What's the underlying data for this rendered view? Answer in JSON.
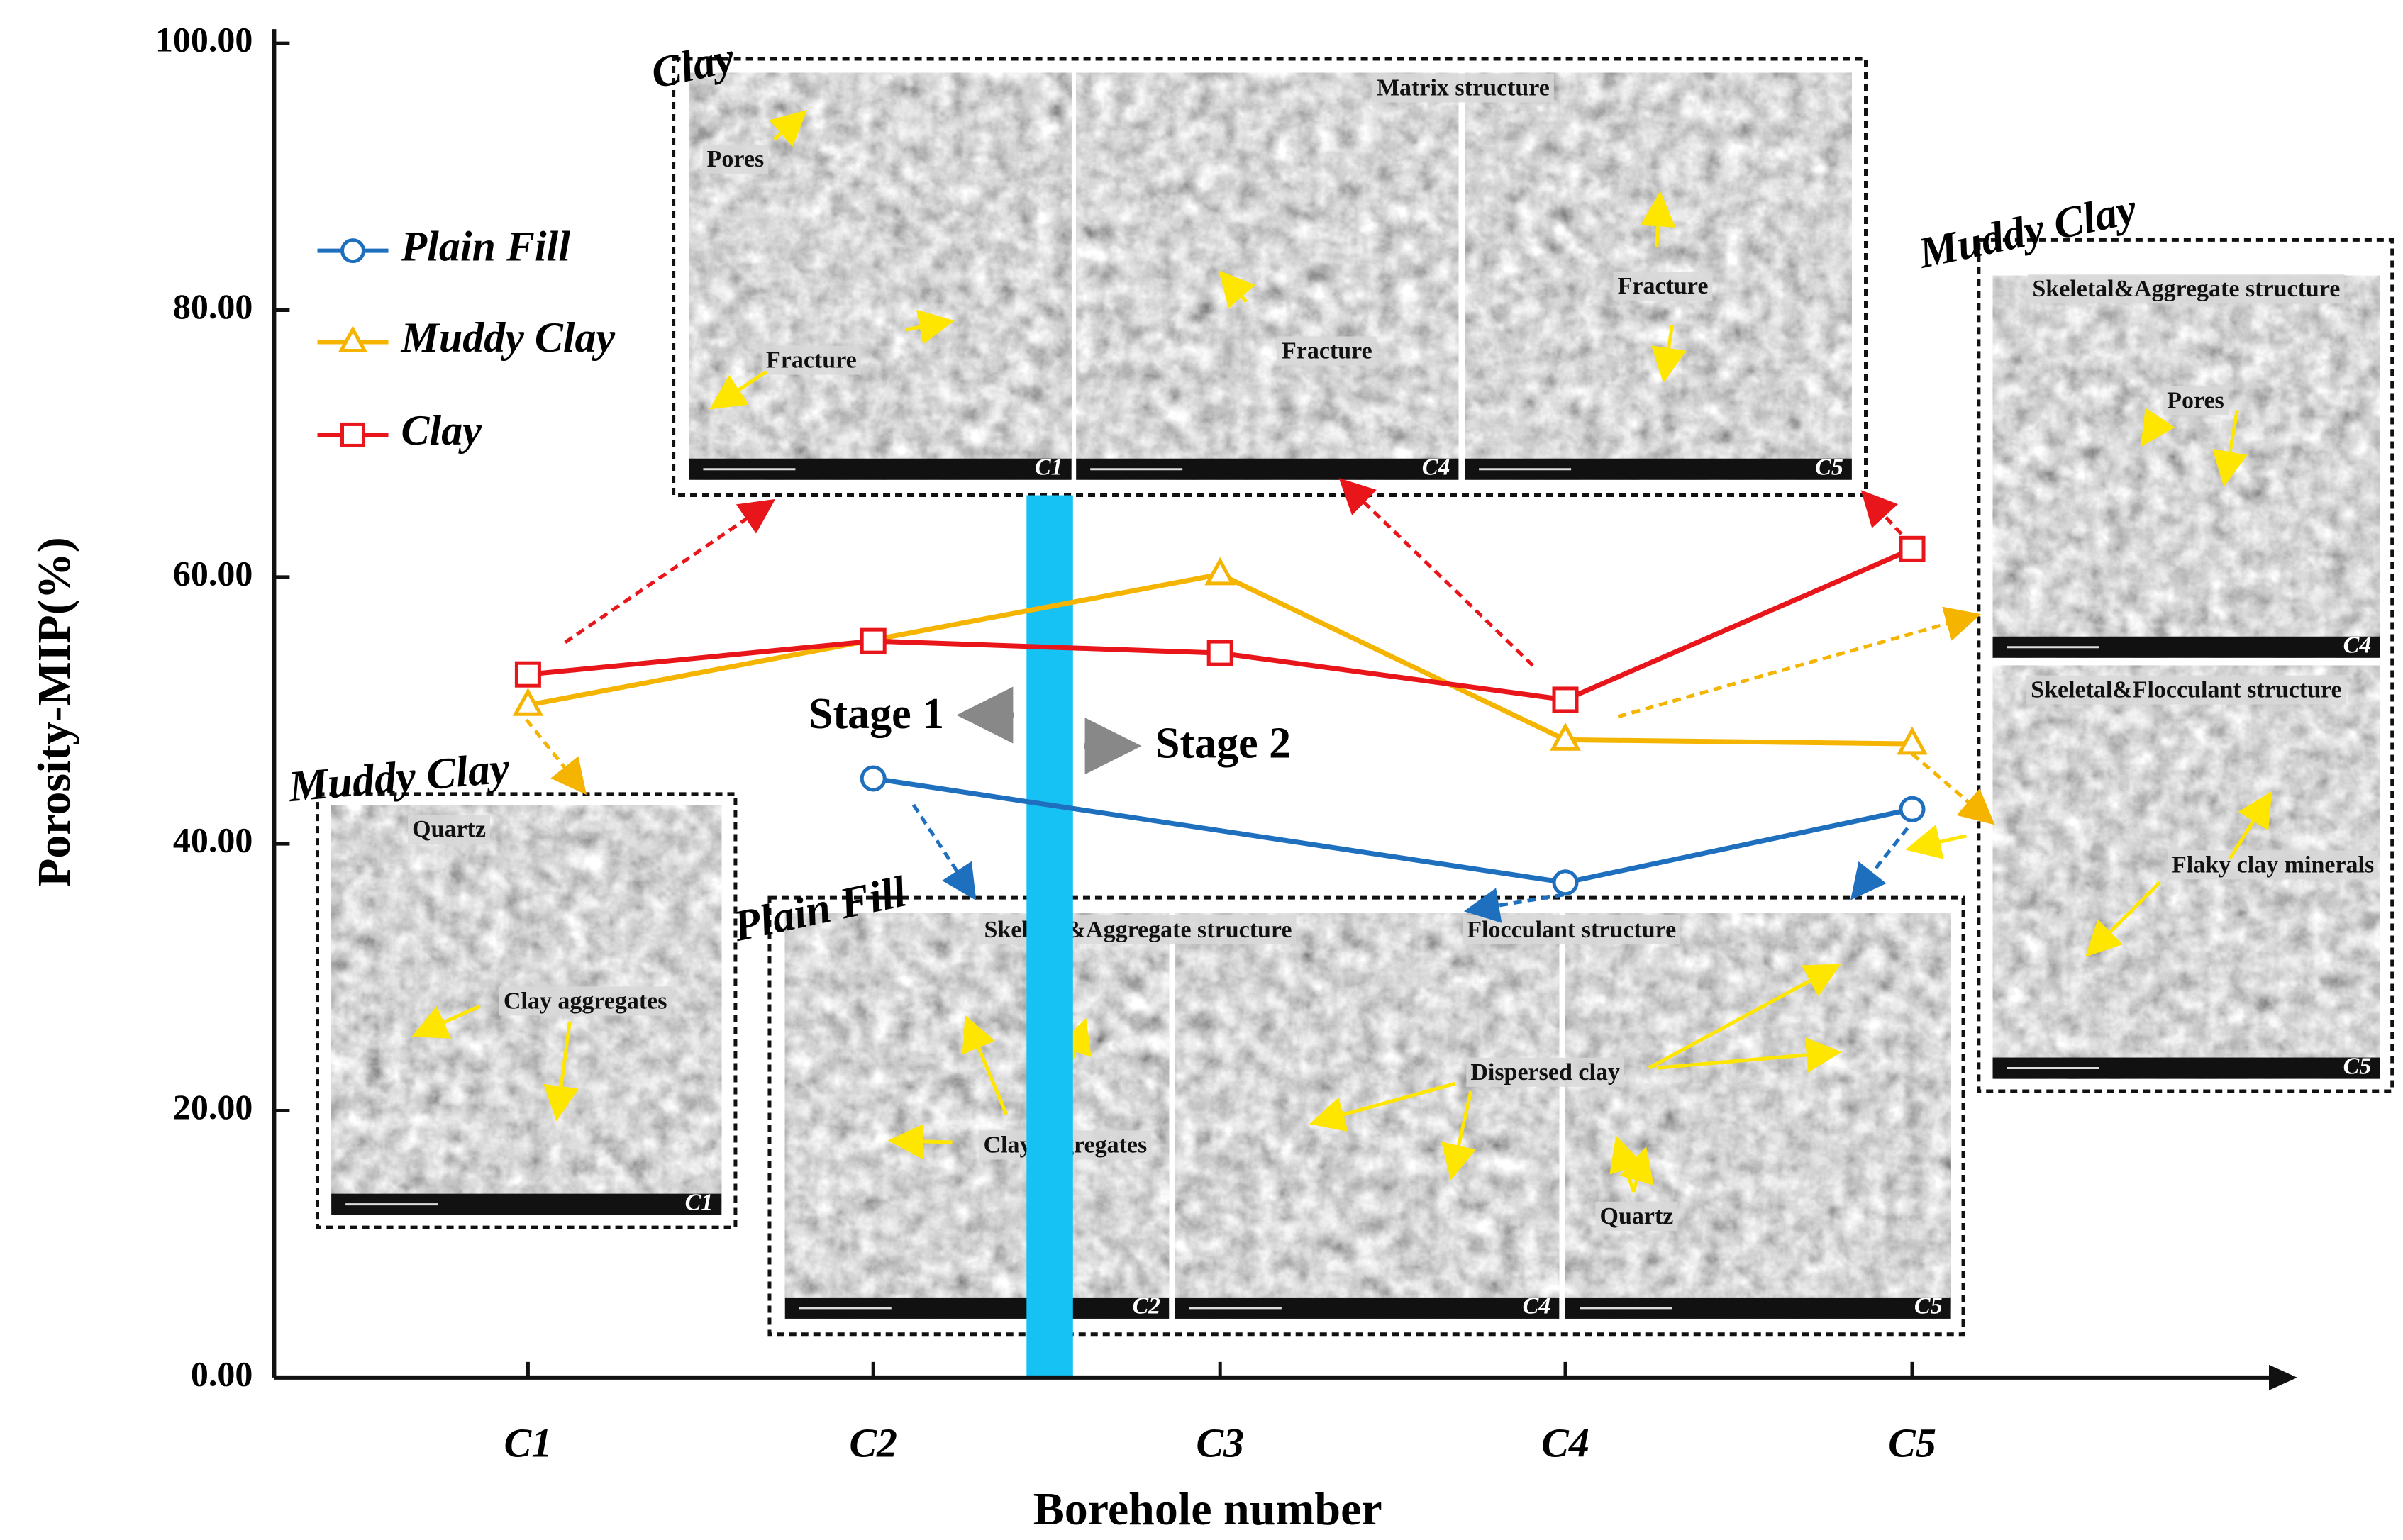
{
  "chart_data": {
    "type": "line",
    "x_label": "Borehole number",
    "y_label": "Porosity-MIP(%)",
    "categories": [
      "C1",
      "C2",
      "C3",
      "C4",
      "C5"
    ],
    "ylim": [
      0,
      100
    ],
    "yticks": [
      {
        "value": 0,
        "label": "0.00"
      },
      {
        "value": 20,
        "label": "20.00"
      },
      {
        "value": 40,
        "label": "40.00"
      },
      {
        "value": 60,
        "label": "60.00"
      },
      {
        "value": 80,
        "label": "80.00"
      },
      {
        "value": 100,
        "label": "100.00"
      }
    ],
    "legend": "upper left",
    "series": [
      {
        "name": "Plain Fill",
        "color": "#1f6fbf",
        "marker": "circle",
        "x": [
          "C2",
          "C4",
          "C5"
        ],
        "values": [
          44.9,
          37.1,
          42.6
        ]
      },
      {
        "name": "Muddy Clay",
        "color": "#f5b400",
        "marker": "triangle",
        "x": [
          "C1",
          "C3",
          "C4",
          "C5"
        ],
        "values": [
          50.4,
          60.2,
          47.8,
          47.5
        ]
      },
      {
        "name": "Clay",
        "color": "#e8161b",
        "marker": "square",
        "x": [
          "C1",
          "C2",
          "C3",
          "C4",
          "C5"
        ],
        "values": [
          52.7,
          55.2,
          54.3,
          50.8,
          62.1
        ]
      }
    ],
    "stage_labels": [
      "Stage 1",
      "Stage 2"
    ],
    "insets": [
      {
        "title": "Clay",
        "image_labels": [
          "C1",
          "C4",
          "C5"
        ],
        "annotations": [
          "Matrix structure",
          "Pores",
          "Fracture",
          "Fracture",
          "Fracture"
        ]
      },
      {
        "title": "Muddy Clay",
        "image_labels": [
          "C4",
          "C5"
        ],
        "annotations": [
          "Skeletal&Aggregate structure",
          "Pores",
          "Skeletal&Flocculant structure",
          "Flaky clay minerals"
        ]
      },
      {
        "title": "Muddy Clay",
        "image_labels": [
          "C1"
        ],
        "annotations": [
          "Quartz",
          "Clay aggregates"
        ]
      },
      {
        "title": "Plain Fill",
        "image_labels": [
          "C2",
          "C4",
          "C5"
        ],
        "annotations": [
          "Skeletal&Aggregate structure",
          "Flocculant structure",
          "Clay aggregates",
          "Dispersed clay",
          "Quartz"
        ]
      }
    ]
  }
}
